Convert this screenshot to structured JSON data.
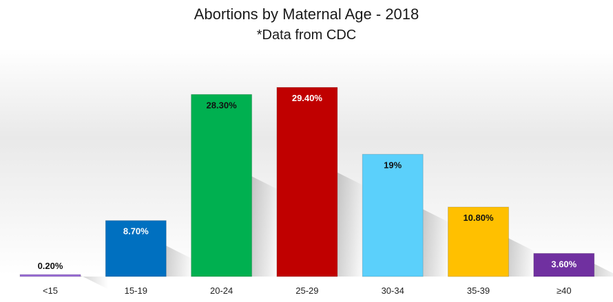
{
  "chart_data": {
    "type": "bar",
    "title": "Abortions by Maternal Age -  2018",
    "subtitle": "*Data from CDC",
    "xlabel": "",
    "ylabel": "",
    "categories": [
      "<15",
      "15-19",
      "20-24",
      "25-29",
      "30-34",
      "35-39",
      "≥40"
    ],
    "values": [
      0.2,
      8.7,
      28.3,
      29.4,
      19,
      10.8,
      3.6
    ],
    "data_labels": [
      "0.20%",
      "8.70%",
      "28.30%",
      "29.40%",
      "19%",
      "10.80%",
      "3.60%"
    ],
    "colors": [
      "#9b6fd6",
      "#0070c0",
      "#00b050",
      "#c00000",
      "#5bd0fb",
      "#ffc000",
      "#7030a0"
    ],
    "label_colors": [
      "#111111",
      "#ffffff",
      "#111111",
      "#ffffff",
      "#111111",
      "#111111",
      "#ffffff"
    ],
    "ylim": [
      0,
      31
    ],
    "grid": false,
    "legend": "none"
  }
}
